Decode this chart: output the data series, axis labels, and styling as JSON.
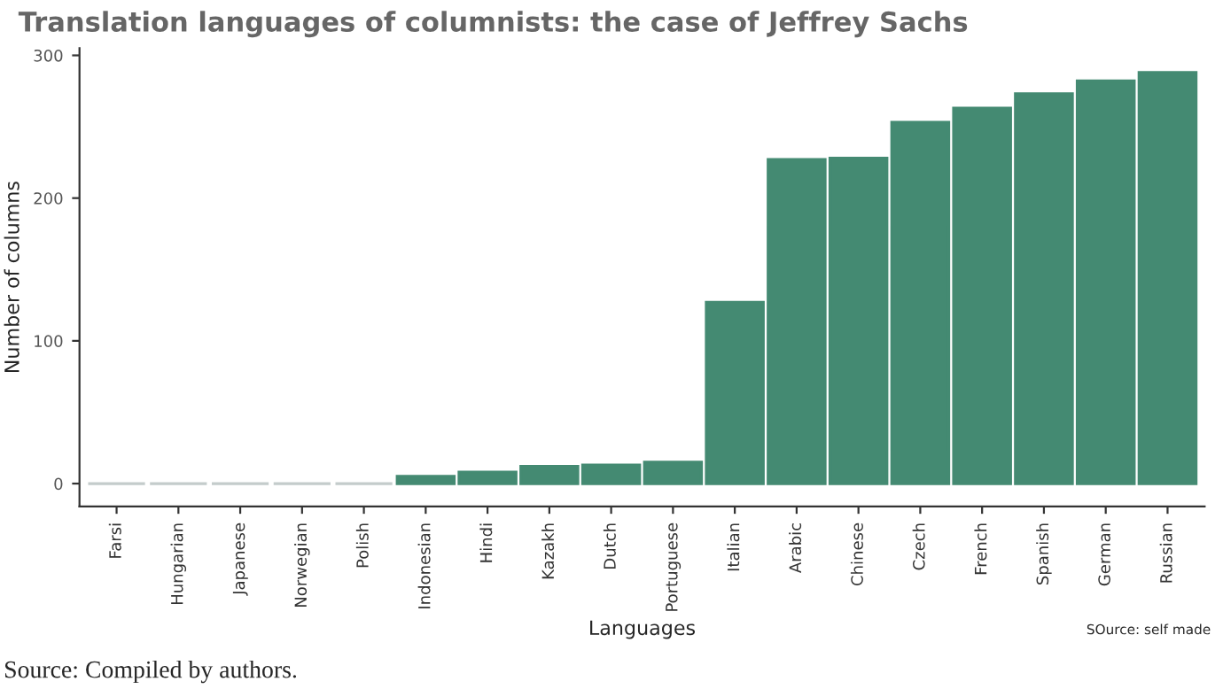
{
  "chart_data": {
    "type": "bar",
    "title": "Translation languages of columnists: the case of Jeffrey Sachs",
    "xlabel": "Languages",
    "ylabel": "Number of columns",
    "categories": [
      "Farsi",
      "Hungarian",
      "Japanese",
      "Norwegian",
      "Polish",
      "Indonesian",
      "Hindi",
      "Kazakh",
      "Dutch",
      "Portuguese",
      "Italian",
      "Arabic",
      "Chinese",
      "Czech",
      "French",
      "Spanish",
      "German",
      "Russian"
    ],
    "values": [
      0,
      0,
      0,
      0,
      0,
      5,
      8,
      12,
      13,
      15,
      127,
      227,
      228,
      253,
      263,
      273,
      282,
      288
    ],
    "colors": [
      "#c4cccb",
      "#c4cccb",
      "#c4cccb",
      "#c4cccb",
      "#c4cccb",
      "#448a72",
      "#448a72",
      "#448a72",
      "#448a72",
      "#448a72",
      "#448a72",
      "#448a72",
      "#448a72",
      "#448a72",
      "#448a72",
      "#448a72",
      "#448a72",
      "#448a72"
    ],
    "ylim": [
      -16,
      305
    ],
    "yticks": [
      0,
      100,
      200,
      300
    ],
    "grid": false,
    "annotations": [
      "SOurce: self made",
      "Source: Compiled by authors."
    ]
  }
}
